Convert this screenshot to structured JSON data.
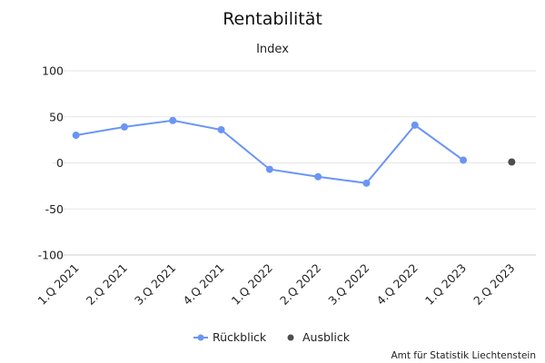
{
  "chart_data": {
    "type": "line",
    "title": "Rentabilität",
    "subtitle": "Index",
    "categories": [
      "1.Q 2021",
      "2.Q 2021",
      "3.Q 2021",
      "4.Q 2021",
      "1.Q 2022",
      "2.Q 2022",
      "3.Q 2022",
      "4.Q 2022",
      "1.Q 2023",
      "2.Q 2023"
    ],
    "series": [
      {
        "name": "Rückblick",
        "color": "#6a95f5",
        "values": [
          30,
          39,
          46,
          36,
          -7,
          -15,
          -22,
          41,
          3,
          null
        ]
      },
      {
        "name": "Ausblick",
        "color": "#4d4d4d",
        "values": [
          null,
          null,
          null,
          null,
          null,
          null,
          null,
          null,
          null,
          1
        ]
      }
    ],
    "ylim": [
      -100,
      100
    ],
    "yticks": [
      100,
      50,
      0,
      -50,
      -100
    ],
    "ytick_labels": [
      "100",
      "50",
      "0",
      "-50",
      "-100"
    ],
    "grid": true,
    "legend_position": "bottom-center",
    "credit": "Amt für Statistik Liechtenstein"
  }
}
